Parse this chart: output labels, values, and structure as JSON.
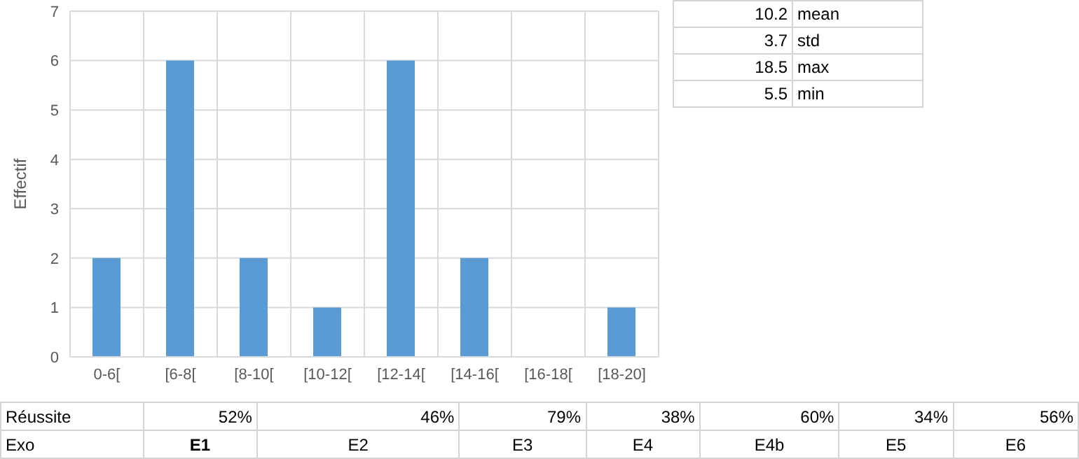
{
  "chart_data": [
    {
      "type": "bar",
      "ylabel": "Effectif",
      "categories": [
        "0-6[",
        "[6-8[",
        "[8-10[",
        "[10-12[",
        "[12-14[",
        "[14-16[",
        "[16-18[",
        "[18-20]"
      ],
      "values": [
        2,
        6,
        2,
        1,
        6,
        2,
        0,
        1
      ],
      "color": "#5b9bd5",
      "ylim": [
        0,
        7
      ],
      "yticks": [
        0,
        1,
        2,
        3,
        4,
        5,
        6,
        7
      ],
      "grid": true
    },
    {
      "type": "other",
      "categories": [
        "mean",
        "std",
        "max",
        "min"
      ],
      "values": [
        10.2,
        3.7,
        18.5,
        5.5
      ],
      "data_labels": true
    },
    {
      "type": "other",
      "ylabel": "Réussite",
      "xlabel": "Exo",
      "categories": [
        "E1",
        "E2",
        "E3",
        "E4",
        "E4b",
        "E5",
        "E6"
      ],
      "value_labels": [
        "52%",
        "46%",
        "79%",
        "38%",
        "60%",
        "34%",
        "56%"
      ]
    }
  ]
}
